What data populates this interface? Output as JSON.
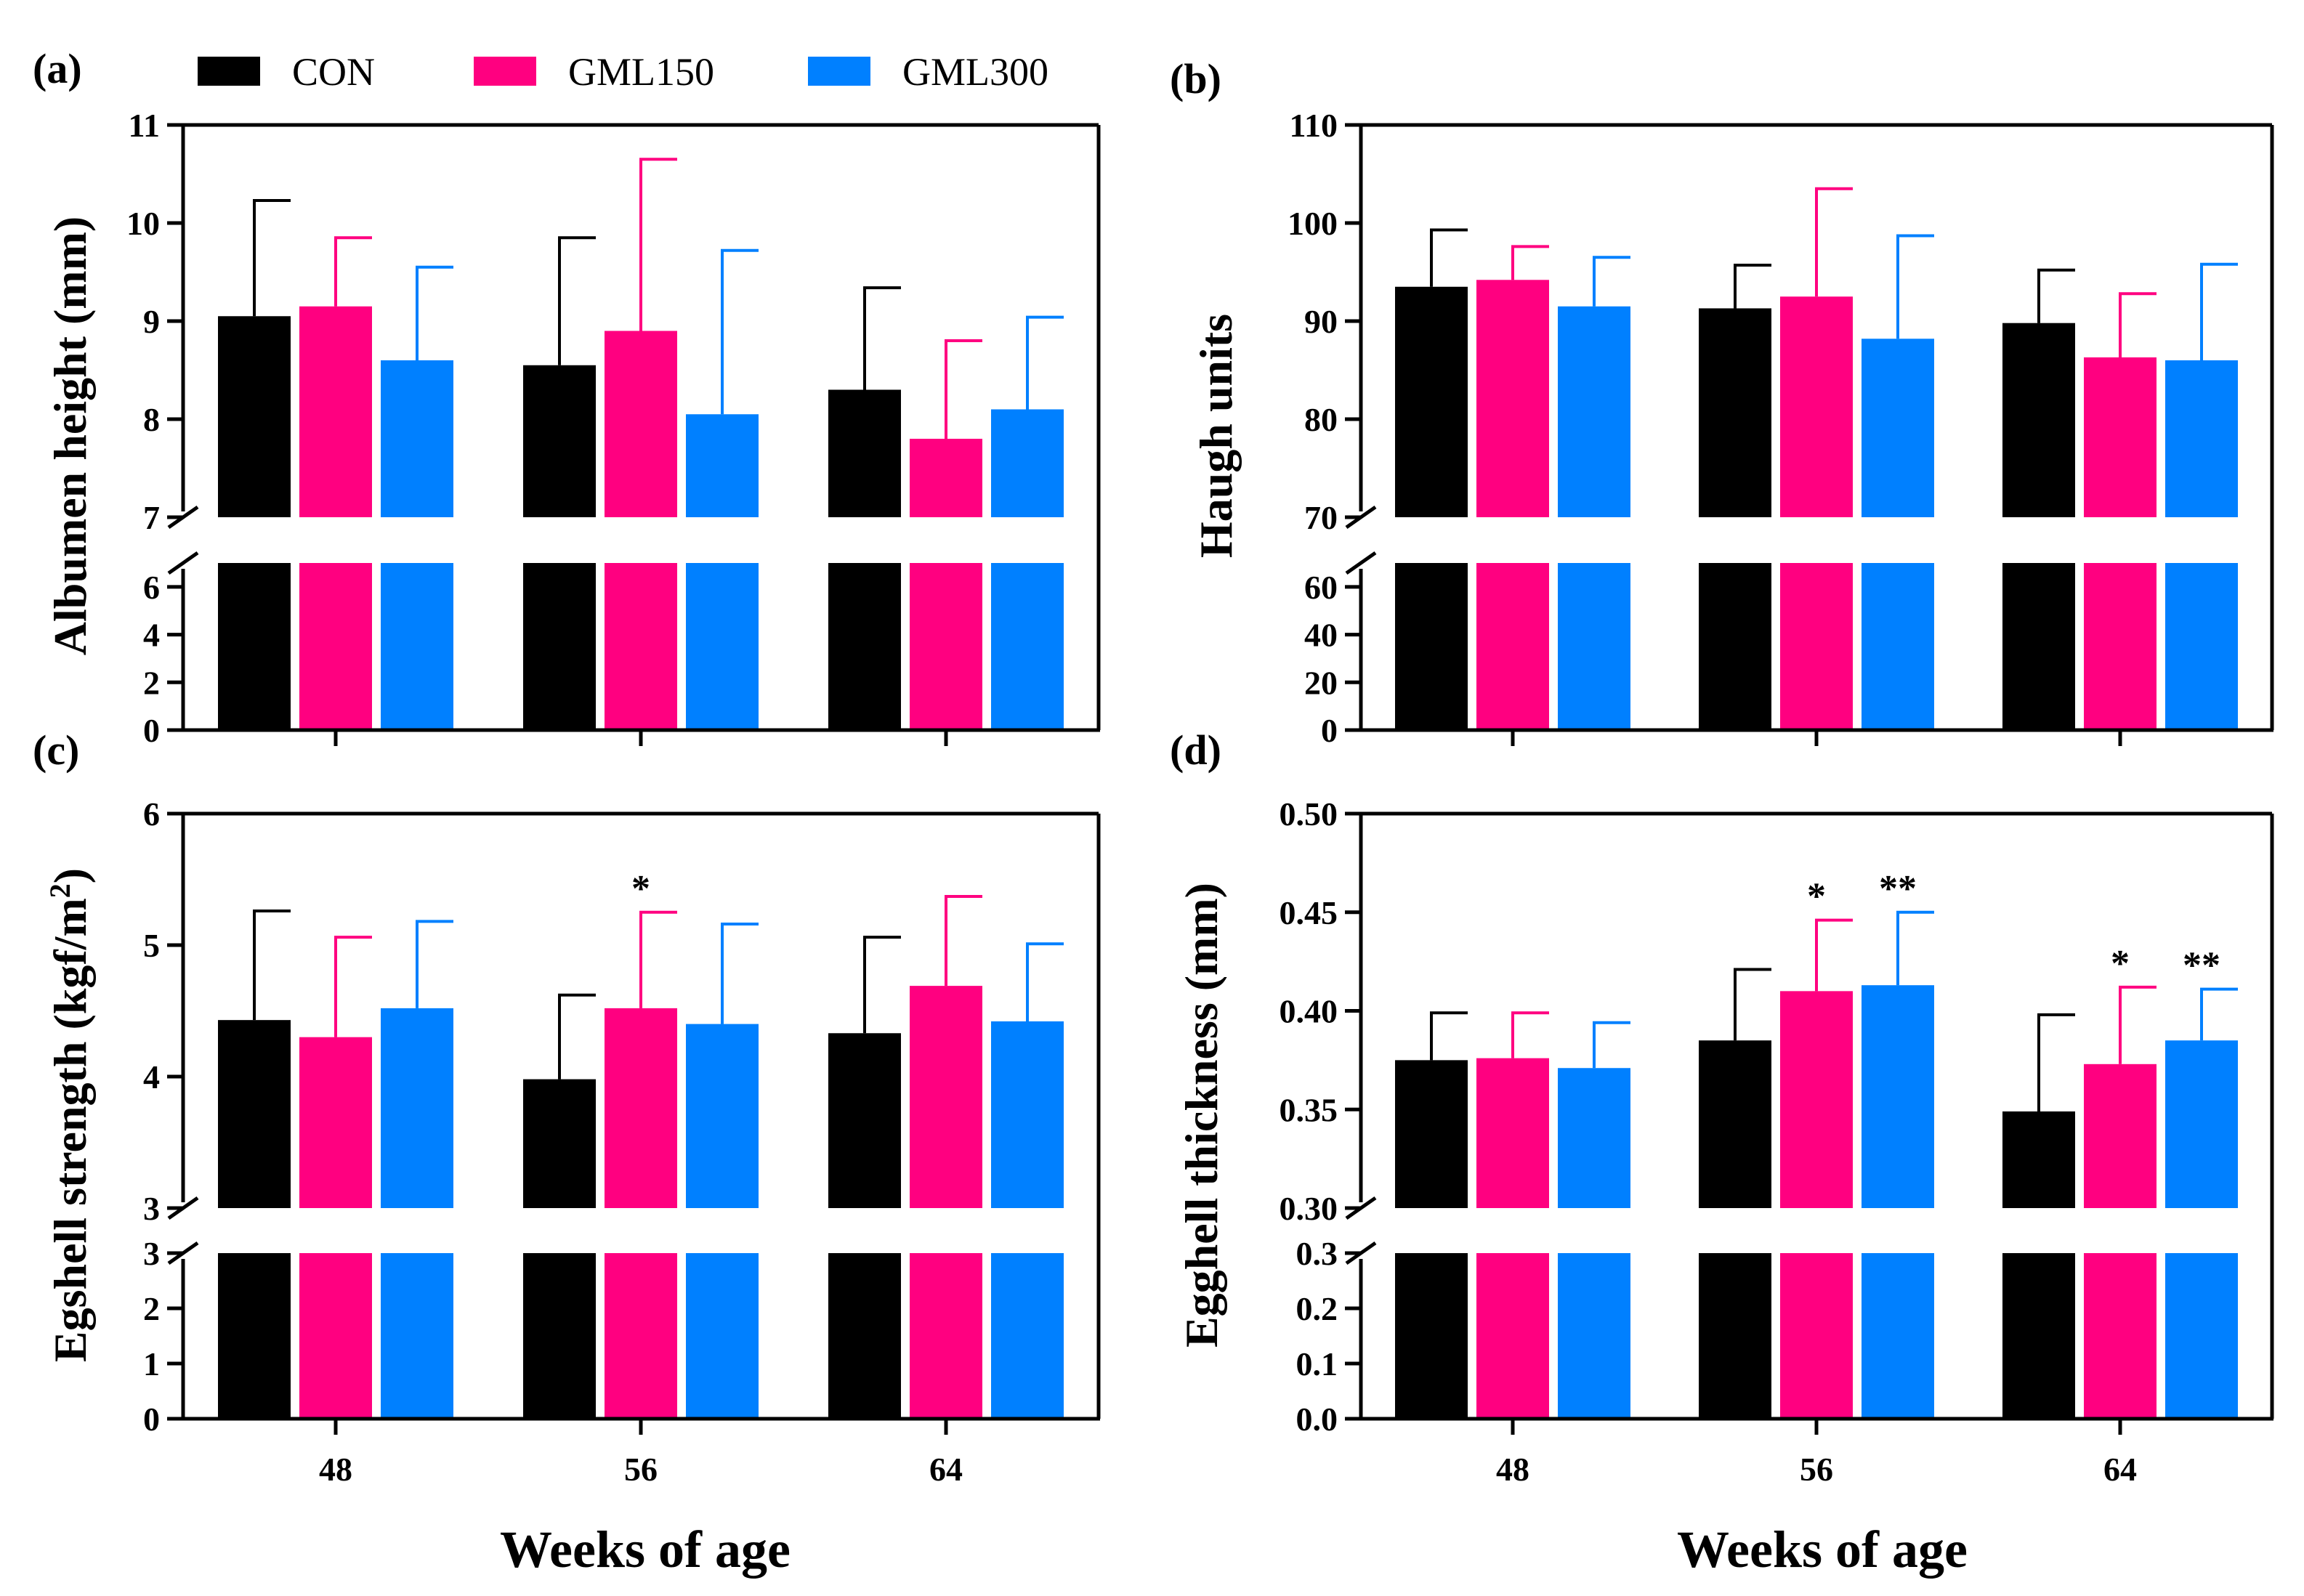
{
  "legend": [
    {
      "name": "CON",
      "color": "#000000"
    },
    {
      "name": "GML150",
      "color": "#ff0080"
    },
    {
      "name": "GML300",
      "color": "#0080ff"
    }
  ],
  "x_axis_label": "Weeks of age",
  "chart_data": [
    {
      "type": "bar",
      "panel": "(a)",
      "ylabel": "Albumen height (mm)",
      "categories": [
        "48",
        "56",
        "64"
      ],
      "upper_range": [
        7,
        11
      ],
      "upper_ticks": [
        "7",
        "8",
        "9",
        "10",
        "11"
      ],
      "lower_range": [
        0,
        7
      ],
      "lower_ticks": [
        "0",
        "2",
        "4",
        "6"
      ],
      "show_x_tick_labels": false,
      "series": [
        {
          "name": "CON",
          "values": [
            9.05,
            8.55,
            8.3
          ],
          "errors": [
            1.18,
            1.3,
            1.04
          ]
        },
        {
          "name": "GML150",
          "values": [
            9.15,
            8.9,
            7.8
          ],
          "errors": [
            0.7,
            1.75,
            1.0
          ]
        },
        {
          "name": "GML300",
          "values": [
            8.6,
            8.05,
            8.1
          ],
          "errors": [
            0.95,
            1.67,
            0.94
          ]
        }
      ],
      "annotations": []
    },
    {
      "type": "bar",
      "panel": "(b)",
      "ylabel": "Haugh units",
      "categories": [
        "48",
        "56",
        "64"
      ],
      "upper_range": [
        70,
        110
      ],
      "upper_ticks": [
        "70",
        "80",
        "90",
        "100",
        "110"
      ],
      "lower_range": [
        0,
        70
      ],
      "lower_ticks": [
        "0",
        "20",
        "40",
        "60"
      ],
      "show_x_tick_labels": false,
      "series": [
        {
          "name": "CON",
          "values": [
            93.5,
            91.3,
            89.8
          ],
          "errors": [
            5.8,
            4.4,
            5.4
          ]
        },
        {
          "name": "GML150",
          "values": [
            94.2,
            92.5,
            86.3
          ],
          "errors": [
            3.4,
            11.0,
            6.5
          ]
        },
        {
          "name": "GML300",
          "values": [
            91.5,
            88.2,
            86.0
          ],
          "errors": [
            5.0,
            10.5,
            9.8
          ]
        }
      ],
      "annotations": []
    },
    {
      "type": "bar",
      "panel": "(c)",
      "ylabel": "Egshell strength (kgf/m²)",
      "ylabel_text": "Egshell strength (kgf/m",
      "ylabel_sup": "2",
      "ylabel_close": ")",
      "categories": [
        "48",
        "56",
        "64"
      ],
      "upper_range": [
        3,
        6
      ],
      "upper_ticks": [
        "3",
        "4",
        "5",
        "6"
      ],
      "lower_range": [
        0,
        3
      ],
      "lower_ticks": [
        "0",
        "1",
        "2",
        "3"
      ],
      "show_x_tick_labels": true,
      "series": [
        {
          "name": "CON",
          "values": [
            4.43,
            3.98,
            4.33
          ],
          "errors": [
            0.83,
            0.64,
            0.73
          ]
        },
        {
          "name": "GML150",
          "values": [
            4.3,
            4.52,
            4.69
          ],
          "errors": [
            0.76,
            0.73,
            0.68
          ]
        },
        {
          "name": "GML300",
          "values": [
            4.52,
            4.4,
            4.42
          ],
          "errors": [
            0.66,
            0.76,
            0.59
          ]
        }
      ],
      "annotations": [
        {
          "category": 1,
          "series": 1,
          "text": "*"
        }
      ]
    },
    {
      "type": "bar",
      "panel": "(d)",
      "ylabel": "Egghell thickness (mm)",
      "categories": [
        "48",
        "56",
        "64"
      ],
      "upper_range": [
        0.3,
        0.5
      ],
      "upper_ticks": [
        "0.30",
        "0.35",
        "0.40",
        "0.45",
        "0.50"
      ],
      "lower_range": [
        0,
        0.3
      ],
      "lower_ticks": [
        "0.0",
        "0.1",
        "0.2",
        "0.3"
      ],
      "show_x_tick_labels": true,
      "series": [
        {
          "name": "CON",
          "values": [
            0.375,
            0.385,
            0.349
          ],
          "errors": [
            0.024,
            0.036,
            0.049
          ]
        },
        {
          "name": "GML150",
          "values": [
            0.376,
            0.41,
            0.373
          ],
          "errors": [
            0.023,
            0.036,
            0.039
          ]
        },
        {
          "name": "GML300",
          "values": [
            0.371,
            0.413,
            0.385
          ],
          "errors": [
            0.023,
            0.037,
            0.026
          ]
        }
      ],
      "annotations": [
        {
          "category": 1,
          "series": 1,
          "text": "*"
        },
        {
          "category": 1,
          "series": 2,
          "text": "**"
        },
        {
          "category": 2,
          "series": 1,
          "text": "*"
        },
        {
          "category": 2,
          "series": 2,
          "text": "**"
        }
      ]
    }
  ]
}
